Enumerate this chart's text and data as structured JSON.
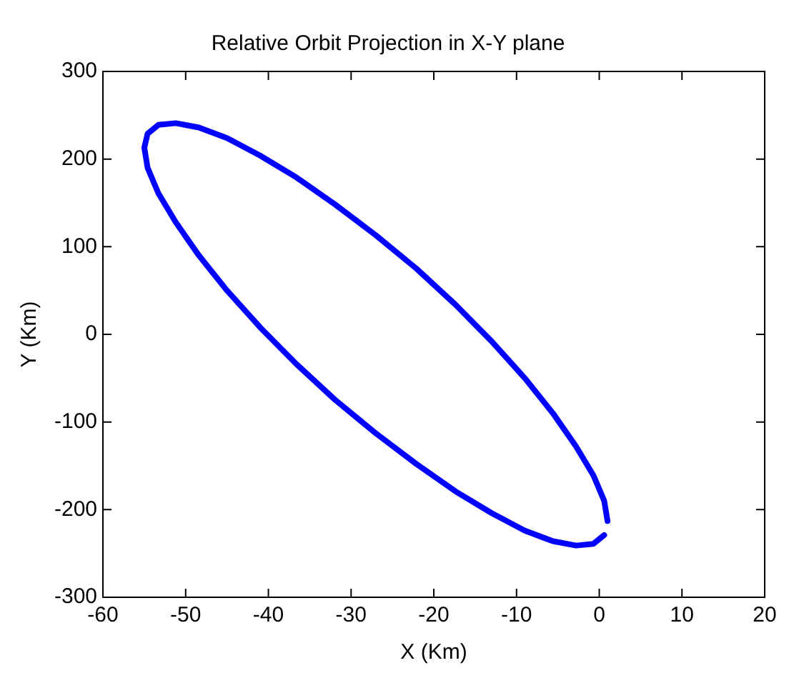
{
  "chart_data": {
    "type": "line",
    "title": "Relative Orbit Projection in X-Y plane",
    "xlabel": "X (Km)",
    "ylabel": "Y (Km)",
    "xlim": [
      -60,
      20
    ],
    "xticks": [
      -60,
      -50,
      -40,
      -30,
      -20,
      -10,
      0,
      10,
      20
    ],
    "ylim": [
      -300,
      300
    ],
    "yticks": [
      -300,
      -200,
      -100,
      0,
      100,
      200,
      300
    ],
    "grid": false,
    "legend": false,
    "marker": "none",
    "line_style": "solid",
    "series": [
      {
        "color": "#0000ff",
        "x": [
          1,
          0.6,
          -0.7,
          -2.8,
          -5.6,
          -9,
          -13,
          -17.4,
          -22.1,
          -27,
          -31.9,
          -36.6,
          -41,
          -45,
          -48.4,
          -51.2,
          -53.3,
          -54.6,
          -55,
          -54.6,
          -53.3,
          -51.2,
          -48.4,
          -45,
          -41,
          -36.6,
          -31.9,
          -27,
          -22.1,
          -17.4,
          -13,
          -9,
          -5.6,
          -2.8,
          -0.7,
          0.6
        ],
        "values": [
          -213,
          -190,
          -161,
          -128,
          -90,
          -50,
          -8,
          34,
          75,
          113,
          148,
          179,
          204,
          224,
          236,
          241,
          239,
          229,
          213,
          190,
          161,
          128,
          90,
          50,
          8,
          -34,
          -75,
          -113,
          -148,
          -179,
          -204,
          -224,
          -236,
          -241,
          -239,
          -229
        ]
      }
    ]
  }
}
